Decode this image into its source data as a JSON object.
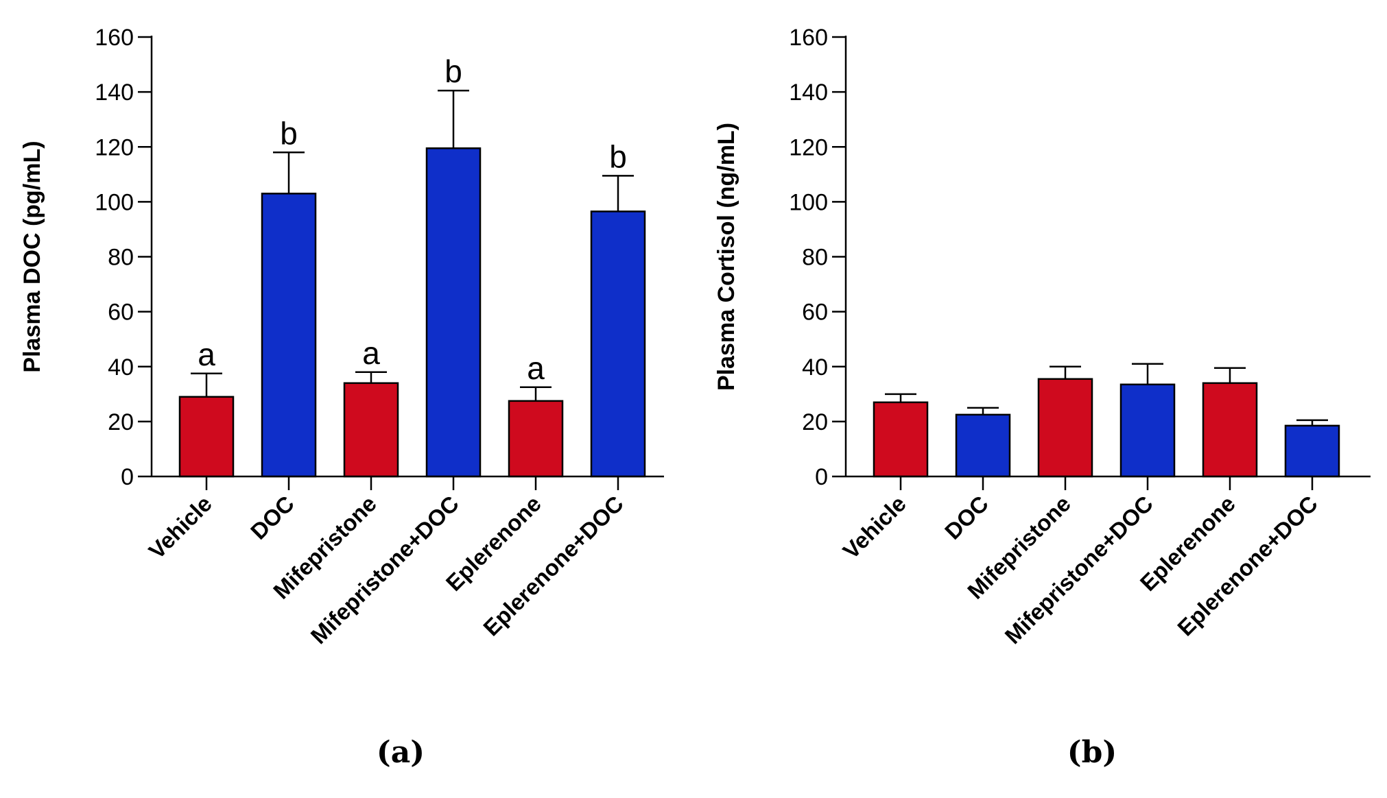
{
  "chart_data": [
    {
      "type": "bar",
      "panel_label": "(a)",
      "ylabel": "Plasma DOC (pg/mL)",
      "xlabel": "",
      "ylim": [
        0,
        160
      ],
      "yticks": [
        "0",
        "20",
        "40",
        "60",
        "80",
        "100",
        "120",
        "140",
        "160"
      ],
      "categories": [
        "Vehicle",
        "DOC",
        "Mifepristone",
        "Mifepristone+DOC",
        "Eplerenone",
        "Eplerenone+DOC"
      ],
      "values": [
        29,
        103,
        34,
        119.5,
        27.5,
        96.5
      ],
      "errors": [
        8.5,
        15,
        4,
        21,
        5,
        13
      ],
      "significance_labels": [
        "a",
        "b",
        "a",
        "b",
        "a",
        "b"
      ],
      "bar_colors": [
        "#cf0a1e",
        "#0f2fc9",
        "#cf0a1e",
        "#0f2fc9",
        "#cf0a1e",
        "#0f2fc9"
      ],
      "grid": false
    },
    {
      "type": "bar",
      "panel_label": "(b)",
      "ylabel": "Plasma Cortisol (ng/mL)",
      "xlabel": "",
      "ylim": [
        0,
        160
      ],
      "yticks": [
        "0",
        "20",
        "40",
        "60",
        "80",
        "100",
        "120",
        "140",
        "160"
      ],
      "categories": [
        "Vehicle",
        "DOC",
        "Mifepristone",
        "Mifepristone+DOC",
        "Eplerenone",
        "Eplerenone+DOC"
      ],
      "values": [
        27,
        22.5,
        35.5,
        33.5,
        34,
        18.5
      ],
      "errors": [
        3,
        2.5,
        4.5,
        7.5,
        5.5,
        2
      ],
      "significance_labels": [],
      "bar_colors": [
        "#cf0a1e",
        "#0f2fc9",
        "#cf0a1e",
        "#0f2fc9",
        "#cf0a1e",
        "#0f2fc9"
      ],
      "grid": false
    }
  ]
}
